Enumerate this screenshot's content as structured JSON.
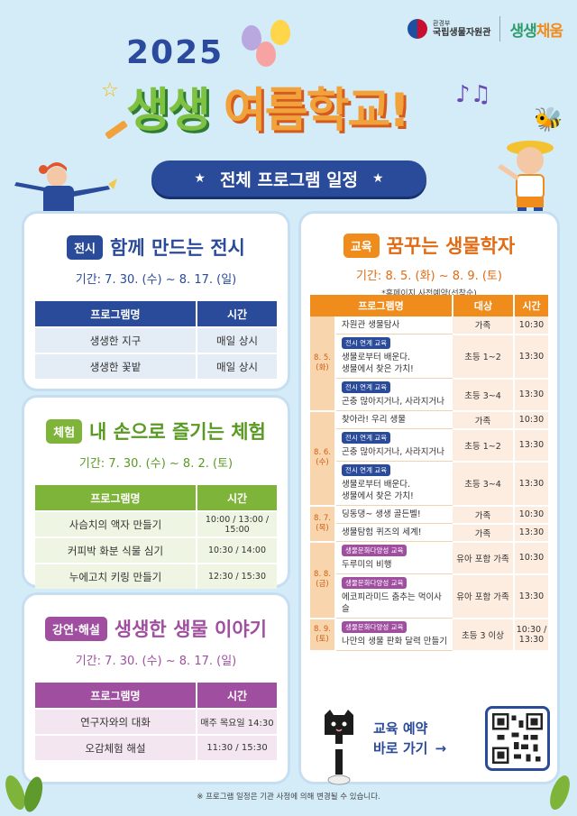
{
  "header": {
    "org_small": "환경부",
    "org_name": "국립생물자원관",
    "brand_a": "생생",
    "brand_b": "채움",
    "year": "2025",
    "title_a": "생생",
    "title_b": "여름학교!",
    "banner": "전체 프로그램 일정"
  },
  "exhibit": {
    "badge": "전시",
    "title": "함께 만드는 전시",
    "period": "기간: 7. 30. (수) ~ 8. 17. (일)",
    "col_name": "프로그램명",
    "col_time": "시간",
    "rows": [
      {
        "name": "생생한 지구",
        "time": "매일 상시"
      },
      {
        "name": "생생한 꽃밭",
        "time": "매일 상시"
      }
    ]
  },
  "experience": {
    "badge": "체험",
    "title": "내 손으로 즐기는 체험",
    "period": "기간: 7. 30. (수) ~ 8. 2. (토)",
    "col_name": "프로그램명",
    "col_time": "시간",
    "rows": [
      {
        "name": "사슴치의 액자 만들기",
        "time": "10:00 / 13:00 / 15:00"
      },
      {
        "name": "커피박 화분 식물 심기",
        "time": "10:30 / 14:00"
      },
      {
        "name": "누에고치 키링 만들기",
        "time": "12:30 / 15:30"
      }
    ]
  },
  "lecture": {
    "badge": "강연·해설",
    "title": "생생한 생물 이야기",
    "period": "기간: 7. 30. (수) ~ 8. 17. (일)",
    "col_name": "프로그램명",
    "col_time": "시간",
    "rows": [
      {
        "name": "연구자와의 대화",
        "time": "매주 목요일 14:30"
      },
      {
        "name": "오감체험 해설",
        "time": "11:30 / 15:30"
      }
    ]
  },
  "education": {
    "badge": "교육",
    "title": "꿈꾸는 생물학자",
    "period": "기간: 8. 5. (화) ~ 8. 9. (토)",
    "note": "*홈페이지 사전예약(선착순)",
    "col_name": "프로그램명",
    "col_target": "대상",
    "col_time": "시간",
    "days": [
      {
        "date_line1": "8. 5.",
        "date_line2": "(화)",
        "rows": [
          {
            "tag": "",
            "lines": [
              "자원관 생물탐사"
            ],
            "target": "가족",
            "time": "10:30"
          },
          {
            "tag": "전시 연계 교육",
            "lines": [
              "생물로부터 배운다.",
              "생물에서 찾은 가치!"
            ],
            "target": "초등 1~2",
            "time": "13:30"
          },
          {
            "tag": "전시 연계 교육",
            "lines": [
              "곤충 많아지거나, 사라지거나"
            ],
            "target": "초등 3~4",
            "time": "13:30"
          }
        ]
      },
      {
        "date_line1": "8. 6.",
        "date_line2": "(수)",
        "rows": [
          {
            "tag": "",
            "lines": [
              "찾아라! 우리 생물"
            ],
            "target": "가족",
            "time": "10:30"
          },
          {
            "tag": "전시 연계 교육",
            "lines": [
              "곤충 많아지거나, 사라지거나"
            ],
            "target": "초등 1~2",
            "time": "13:30"
          },
          {
            "tag": "전시 연계 교육",
            "lines": [
              "생물로부터 배운다.",
              "생물에서 찾은 가치!"
            ],
            "target": "초등 3~4",
            "time": "13:30"
          }
        ]
      },
      {
        "date_line1": "8. 7.",
        "date_line2": "(목)",
        "rows": [
          {
            "tag": "",
            "lines": [
              "딩동댕~ 생생 골든벨!"
            ],
            "target": "가족",
            "time": "10:30"
          },
          {
            "tag": "",
            "lines": [
              "생물탐험 퀴즈의 세계!"
            ],
            "target": "가족",
            "time": "13:30"
          }
        ]
      },
      {
        "date_line1": "8. 8.",
        "date_line2": "(금)",
        "rows": [
          {
            "tag": "생물문화다양성 교육",
            "lines": [
              "두루미의 비행"
            ],
            "target": "유아 포함 가족",
            "time": "10:30"
          },
          {
            "tag": "생물문화다양성 교육",
            "lines": [
              "에코피라미드 춤추는 먹이사슬"
            ],
            "target": "유아 포함 가족",
            "time": "13:30"
          }
        ]
      },
      {
        "date_line1": "8. 9.",
        "date_line2": "(토)",
        "rows": [
          {
            "tag": "생물문화다양성 교육",
            "lines": [
              "나만의 생물 판화 달력 만들기"
            ],
            "target": "초등 3 이상",
            "time": "10:30 / 13:30"
          }
        ]
      }
    ],
    "reserve_line1": "교육 예약",
    "reserve_line2": "바로 가기"
  },
  "footnote": "※ 프로그램 일정은 기관 사정에 의해 변경될 수 있습니다.",
  "colors": {
    "navy": "#2a4a9a",
    "green": "#7fb43a",
    "purple": "#a04fa0",
    "orange": "#f08c1c",
    "background": "#d3ecf8"
  }
}
